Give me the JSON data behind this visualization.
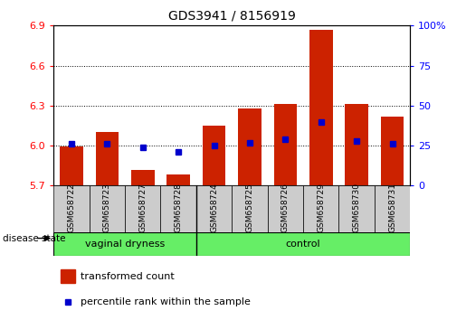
{
  "title": "GDS3941 / 8156919",
  "samples": [
    "GSM658722",
    "GSM658723",
    "GSM658727",
    "GSM658728",
    "GSM658724",
    "GSM658725",
    "GSM658726",
    "GSM658729",
    "GSM658730",
    "GSM658731"
  ],
  "red_values": [
    5.995,
    6.105,
    5.82,
    5.785,
    6.15,
    6.28,
    6.31,
    6.87,
    6.31,
    6.22
  ],
  "blue_values_pct": [
    26,
    26,
    24,
    21,
    25,
    27,
    29,
    40,
    28,
    26
  ],
  "ylim_left": [
    5.7,
    6.9
  ],
  "ylim_right": [
    0,
    100
  ],
  "yticks_left": [
    5.7,
    6.0,
    6.3,
    6.6,
    6.9
  ],
  "yticks_right": [
    0,
    25,
    50,
    75,
    100
  ],
  "bar_color": "#cc2200",
  "dot_color": "#0000cc",
  "group_bg": "#66ee66",
  "legend_red_label": "transformed count",
  "legend_blue_label": "percentile rank within the sample",
  "disease_state_label": "disease state",
  "bar_bottom": 5.7,
  "bar_width": 0.65,
  "vd_count": 4,
  "ctrl_count": 6
}
